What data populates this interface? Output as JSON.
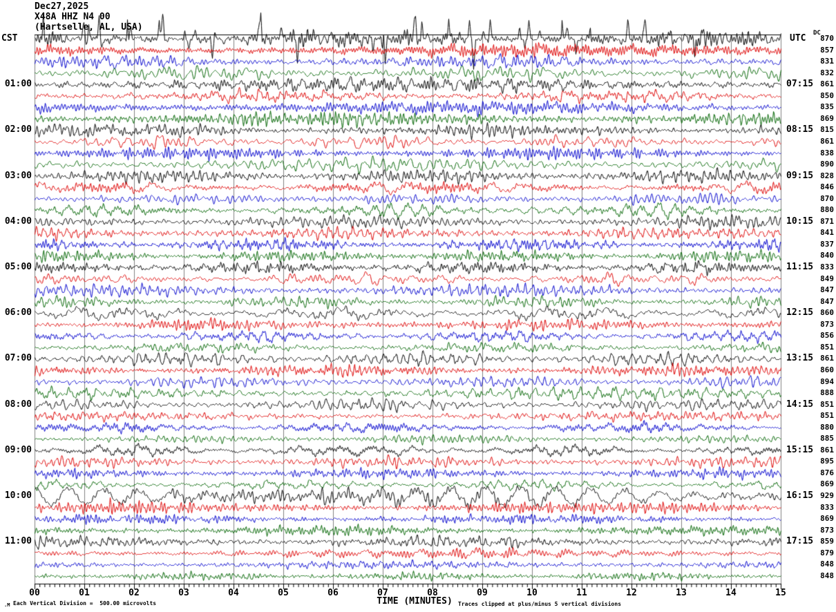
{
  "title": {
    "date": "Dec27,2025",
    "station": "X48A HHZ N4 00",
    "location": "(Hartselle, AL, USA)"
  },
  "axes": {
    "left_header": "CST",
    "right_header": "UTC",
    "dc_header": "DC",
    "xlabel": "TIME (MINUTES)"
  },
  "footer": {
    "left": "Each Vertical Division =  500.00 microvolts",
    "right": "Traces clipped at plus/minus 5 vertical divisions",
    "mark": ".M"
  },
  "colors": {
    "black": "#000000",
    "red": "#dd0000",
    "blue": "#0000cc",
    "green": "#006400",
    "grid": "#808080",
    "axis": "#000000"
  },
  "chart_data": {
    "type": "line",
    "subtype": "helicorder-seismogram",
    "title": "X48A HHZ N4 00 (Hartselle, AL, USA) Dec27,2025",
    "xlabel": "TIME (MINUTES)",
    "x_range": [
      0,
      15
    ],
    "x_major_tick_minutes": 1,
    "x_minor_ticks_per_major": 9,
    "x_tick_labels": [
      "00",
      "01",
      "02",
      "03",
      "04",
      "05",
      "06",
      "07",
      "08",
      "09",
      "10",
      "11",
      "12",
      "13",
      "14",
      "15"
    ],
    "minutes_per_row": 15,
    "rows_per_hour": 4,
    "trace_color_cycle": [
      "black",
      "red",
      "blue",
      "green"
    ],
    "vertical_division_microvolts": 500.0,
    "clip_divisions": 5,
    "rows": [
      {
        "cst": "",
        "utc": "",
        "dc": 870,
        "color": "black",
        "amp": 10,
        "slow": 0,
        "spikes": 55
      },
      {
        "cst": "",
        "utc": "",
        "dc": 857,
        "color": "red",
        "amp": 8,
        "slow": 0,
        "spikes": 0
      },
      {
        "cst": "",
        "utc": "",
        "dc": 831,
        "color": "blue",
        "amp": 8,
        "slow": 0,
        "spikes": 0
      },
      {
        "cst": "",
        "utc": "",
        "dc": 832,
        "color": "green",
        "amp": 9,
        "slow": 0,
        "spikes": 0
      },
      {
        "cst": "01:00",
        "utc": "07:15",
        "dc": 861,
        "color": "black",
        "amp": 9,
        "slow": 0,
        "spikes": 0
      },
      {
        "cst": "",
        "utc": "",
        "dc": 850,
        "color": "red",
        "amp": 8,
        "slow": 0,
        "spikes": 0
      },
      {
        "cst": "",
        "utc": "",
        "dc": 835,
        "color": "blue",
        "amp": 8,
        "slow": 0,
        "spikes": 0
      },
      {
        "cst": "",
        "utc": "",
        "dc": 869,
        "color": "green",
        "amp": 9,
        "slow": 0,
        "spikes": 0
      },
      {
        "cst": "02:00",
        "utc": "08:15",
        "dc": 815,
        "color": "black",
        "amp": 9,
        "slow": 0,
        "spikes": 0
      },
      {
        "cst": "",
        "utc": "",
        "dc": 861,
        "color": "red",
        "amp": 8,
        "slow": 0,
        "spikes": 0
      },
      {
        "cst": "",
        "utc": "",
        "dc": 838,
        "color": "blue",
        "amp": 7,
        "slow": 0,
        "spikes": 0
      },
      {
        "cst": "",
        "utc": "",
        "dc": 890,
        "color": "green",
        "amp": 8,
        "slow": 0,
        "spikes": 0
      },
      {
        "cst": "03:00",
        "utc": "09:15",
        "dc": 828,
        "color": "black",
        "amp": 8,
        "slow": 0,
        "spikes": 0
      },
      {
        "cst": "",
        "utc": "",
        "dc": 846,
        "color": "red",
        "amp": 8,
        "slow": 0,
        "spikes": 0
      },
      {
        "cst": "",
        "utc": "",
        "dc": 870,
        "color": "blue",
        "amp": 7,
        "slow": 0,
        "spikes": 0
      },
      {
        "cst": "",
        "utc": "",
        "dc": 880,
        "color": "green",
        "amp": 8,
        "slow": 0,
        "spikes": 0
      },
      {
        "cst": "04:00",
        "utc": "10:15",
        "dc": 871,
        "color": "black",
        "amp": 8,
        "slow": 0,
        "spikes": 0
      },
      {
        "cst": "",
        "utc": "",
        "dc": 841,
        "color": "red",
        "amp": 7,
        "slow": 0,
        "spikes": 0
      },
      {
        "cst": "",
        "utc": "",
        "dc": 837,
        "color": "blue",
        "amp": 7,
        "slow": 0,
        "spikes": 0
      },
      {
        "cst": "",
        "utc": "",
        "dc": 840,
        "color": "green",
        "amp": 7,
        "slow": 0,
        "spikes": 0
      },
      {
        "cst": "05:00",
        "utc": "11:15",
        "dc": 833,
        "color": "black",
        "amp": 8,
        "slow": 0,
        "spikes": 0
      },
      {
        "cst": "",
        "utc": "",
        "dc": 849,
        "color": "red",
        "amp": 7,
        "slow": 0,
        "spikes": 0
      },
      {
        "cst": "",
        "utc": "",
        "dc": 847,
        "color": "blue",
        "amp": 7,
        "slow": 0,
        "spikes": 0
      },
      {
        "cst": "",
        "utc": "",
        "dc": 847,
        "color": "green",
        "amp": 7,
        "slow": 0,
        "spikes": 0
      },
      {
        "cst": "06:00",
        "utc": "12:15",
        "dc": 860,
        "color": "black",
        "amp": 8,
        "slow": 0,
        "spikes": 0
      },
      {
        "cst": "",
        "utc": "",
        "dc": 873,
        "color": "red",
        "amp": 7,
        "slow": 0,
        "spikes": 0
      },
      {
        "cst": "",
        "utc": "",
        "dc": 856,
        "color": "blue",
        "amp": 7,
        "slow": 0,
        "spikes": 0
      },
      {
        "cst": "",
        "utc": "",
        "dc": 851,
        "color": "green",
        "amp": 6,
        "slow": 0,
        "spikes": 0
      },
      {
        "cst": "07:00",
        "utc": "13:15",
        "dc": 861,
        "color": "black",
        "amp": 8,
        "slow": 0,
        "spikes": 0
      },
      {
        "cst": "",
        "utc": "",
        "dc": 860,
        "color": "red",
        "amp": 7,
        "slow": 0,
        "spikes": 0
      },
      {
        "cst": "",
        "utc": "",
        "dc": 894,
        "color": "blue",
        "amp": 7,
        "slow": 0,
        "spikes": 0
      },
      {
        "cst": "",
        "utc": "",
        "dc": 888,
        "color": "green",
        "amp": 7,
        "slow": 0,
        "spikes": 0
      },
      {
        "cst": "08:00",
        "utc": "14:15",
        "dc": 851,
        "color": "black",
        "amp": 7,
        "slow": 0,
        "spikes": 0
      },
      {
        "cst": "",
        "utc": "",
        "dc": 851,
        "color": "red",
        "amp": 6,
        "slow": 0,
        "spikes": 0
      },
      {
        "cst": "",
        "utc": "",
        "dc": 880,
        "color": "blue",
        "amp": 6,
        "slow": 0,
        "spikes": 0
      },
      {
        "cst": "",
        "utc": "",
        "dc": 885,
        "color": "green",
        "amp": 5,
        "slow": 0,
        "spikes": 0
      },
      {
        "cst": "09:00",
        "utc": "15:15",
        "dc": 861,
        "color": "black",
        "amp": 7,
        "slow": 0,
        "spikes": 0
      },
      {
        "cst": "",
        "utc": "",
        "dc": 895,
        "color": "red",
        "amp": 7,
        "slow": 0,
        "spikes": 0
      },
      {
        "cst": "",
        "utc": "",
        "dc": 876,
        "color": "blue",
        "amp": 6,
        "slow": 0,
        "spikes": 0
      },
      {
        "cst": "",
        "utc": "",
        "dc": 869,
        "color": "green",
        "amp": 6,
        "slow": 0,
        "spikes": 0
      },
      {
        "cst": "10:00",
        "utc": "16:15",
        "dc": 929,
        "color": "black",
        "amp": 8,
        "slow": 13,
        "spikes": 0
      },
      {
        "cst": "",
        "utc": "",
        "dc": 833,
        "color": "red",
        "amp": 7,
        "slow": 0,
        "spikes": 0
      },
      {
        "cst": "",
        "utc": "",
        "dc": 869,
        "color": "blue",
        "amp": 6,
        "slow": 0,
        "spikes": 0
      },
      {
        "cst": "",
        "utc": "",
        "dc": 873,
        "color": "green",
        "amp": 6,
        "slow": 0,
        "spikes": 0
      },
      {
        "cst": "11:00",
        "utc": "17:15",
        "dc": 859,
        "color": "black",
        "amp": 7,
        "slow": 0,
        "spikes": 0
      },
      {
        "cst": "",
        "utc": "",
        "dc": 879,
        "color": "red",
        "amp": 6,
        "slow": 0,
        "spikes": 0
      },
      {
        "cst": "",
        "utc": "",
        "dc": 848,
        "color": "blue",
        "amp": 5,
        "slow": 0,
        "spikes": 0
      },
      {
        "cst": "",
        "utc": "",
        "dc": 848,
        "color": "green",
        "amp": 5,
        "slow": 0,
        "spikes": 0
      }
    ]
  }
}
